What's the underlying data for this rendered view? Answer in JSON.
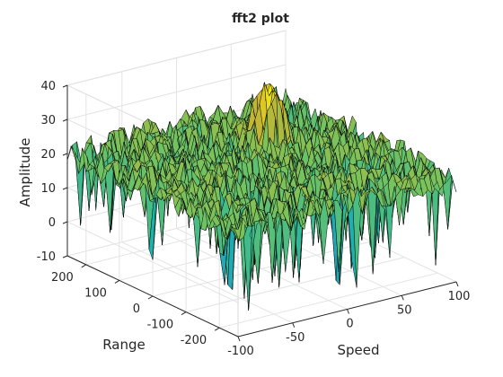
{
  "chart_data": {
    "type": "surface",
    "title": "fft2 plot",
    "xlabel": "Speed",
    "ylabel": "Range",
    "zlabel": "Amplitude",
    "xlim": [
      -100,
      100
    ],
    "ylim": [
      -256,
      256
    ],
    "zlim": [
      -10,
      40
    ],
    "x_ticks": [
      -100,
      -50,
      0,
      50,
      100
    ],
    "y_ticks": [
      -200,
      -100,
      0,
      100,
      200
    ],
    "z_ticks": [
      -10,
      0,
      10,
      20,
      30,
      40
    ],
    "x_tick_labels": [
      "-100",
      "-50",
      "0",
      "50",
      "100"
    ],
    "y_tick_labels": [
      "-200",
      "-100",
      "0",
      "100",
      "200"
    ],
    "z_tick_labels": [
      "-10",
      "0",
      "10",
      "20",
      "30",
      "40"
    ],
    "grid": true,
    "noise_floor": {
      "mean": 20,
      "min": -8,
      "max": 26
    },
    "peak": {
      "speed": 30,
      "range": 80,
      "amplitude": 38
    },
    "colormap": [
      "#3e26a8",
      "#2b8fd0",
      "#1cb5a9",
      "#74c35f",
      "#d1b42d",
      "#f9fb0e"
    ],
    "edge_color": "#000000"
  }
}
